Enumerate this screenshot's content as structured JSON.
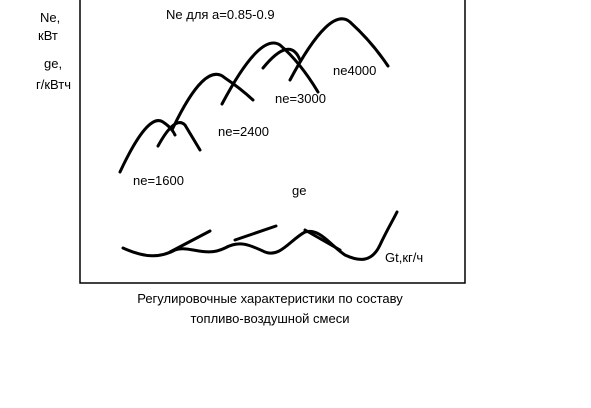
{
  "header": {
    "title": "Ne для  а=0.85-0.9"
  },
  "axis_labels": [
    "Ne,",
    "кВт",
    "ge,",
    "г/кВтч"
  ],
  "curve_labels": [
    "ne=1600",
    "ne=2400",
    "ne=3000",
    "ne4000",
    "ge",
    "Gt,кг/ч"
  ],
  "caption": [
    "Регулировочные характеристики по составу",
    "топливо-воздушной смеси"
  ]
}
